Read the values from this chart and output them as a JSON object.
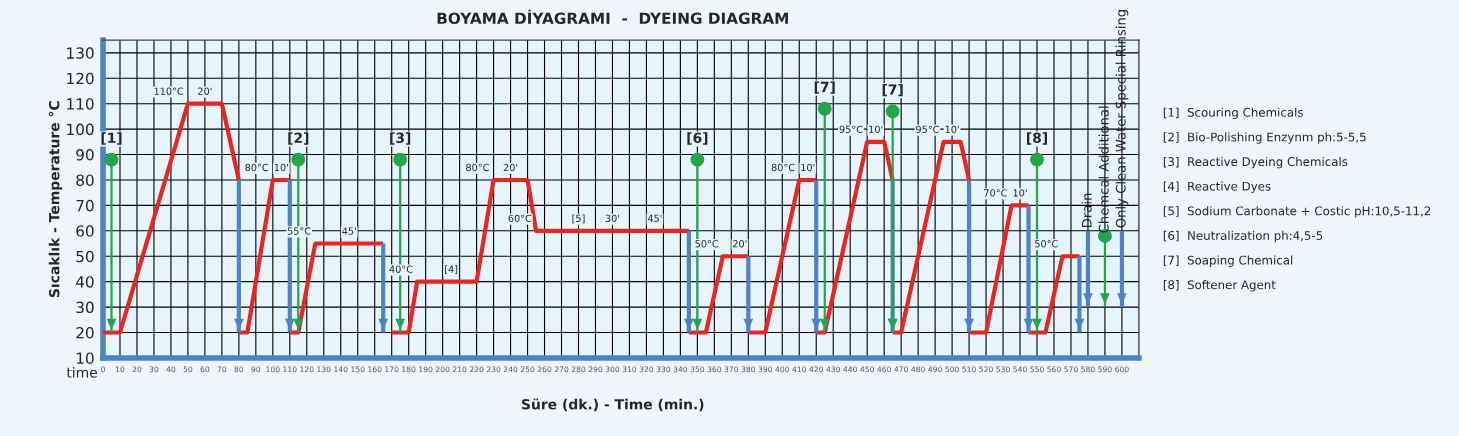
{
  "chart_data": {
    "type": "line",
    "title": "BOYAMA DİYAGRAMI  -  DYEING DIAGRAM",
    "xlabel": "Süre (dk.) - Time (min.)",
    "ylabel": "Sıcaklık - Temperature °C",
    "xlim": [
      0,
      610
    ],
    "ylim": [
      10,
      135
    ],
    "xticks": [
      0,
      10,
      20,
      30,
      40,
      50,
      60,
      70,
      80,
      90,
      100,
      110,
      120,
      130,
      140,
      150,
      160,
      170,
      180,
      190,
      200,
      210,
      220,
      230,
      240,
      250,
      260,
      270,
      280,
      290,
      300,
      310,
      320,
      330,
      340,
      350,
      360,
      370,
      380,
      390,
      400,
      410,
      420,
      430,
      440,
      450,
      460,
      470,
      480,
      490,
      500,
      510,
      520,
      530,
      540,
      550,
      560,
      570,
      580,
      590,
      600
    ],
    "yticks": [
      10,
      20,
      30,
      40,
      50,
      60,
      70,
      80,
      90,
      100,
      110,
      120,
      130
    ],
    "grid": true,
    "legend": false,
    "series": [
      {
        "color": "#e8251f",
        "marker": "none",
        "x": [
          0,
          10,
          50,
          70,
          80
        ],
        "values": [
          20,
          20,
          110,
          110,
          80
        ]
      },
      {
        "color": "#e8251f",
        "marker": "none",
        "x": [
          80,
          85,
          100,
          110
        ],
        "values": [
          20,
          20,
          80,
          80
        ]
      },
      {
        "color": "#e8251f",
        "marker": "none",
        "x": [
          110,
          115,
          125,
          165
        ],
        "values": [
          20,
          20,
          55,
          55
        ]
      },
      {
        "color": "#e8251f",
        "marker": "none",
        "x": [
          170,
          180,
          185,
          220,
          230,
          250,
          255,
          345
        ],
        "values": [
          20,
          20,
          40,
          40,
          80,
          80,
          60,
          60
        ]
      },
      {
        "color": "#e8251f",
        "marker": "none",
        "x": [
          345,
          355,
          365,
          380
        ],
        "values": [
          20,
          20,
          50,
          50
        ]
      },
      {
        "color": "#e8251f",
        "marker": "none",
        "x": [
          380,
          390,
          410,
          420
        ],
        "values": [
          20,
          20,
          80,
          80
        ]
      },
      {
        "color": "#e8251f",
        "marker": "none",
        "x": [
          420,
          425,
          450,
          460,
          465
        ],
        "values": [
          20,
          20,
          95,
          95,
          80
        ]
      },
      {
        "color": "#e8251f",
        "marker": "none",
        "x": [
          465,
          470,
          495,
          505,
          510
        ],
        "values": [
          20,
          20,
          95,
          95,
          80
        ]
      },
      {
        "color": "#e8251f",
        "marker": "none",
        "x": [
          510,
          520,
          535,
          545
        ],
        "values": [
          20,
          20,
          70,
          70
        ]
      },
      {
        "color": "#e8251f",
        "marker": "none",
        "x": [
          545,
          555,
          565,
          575
        ],
        "values": [
          20,
          20,
          50,
          50
        ]
      },
      {
        "color": "#4f81c4",
        "marker": "none",
        "x": [
          80,
          80
        ],
        "values": [
          80,
          20
        ]
      },
      {
        "color": "#4f81c4",
        "marker": "none",
        "x": [
          110,
          110
        ],
        "values": [
          80,
          20
        ]
      },
      {
        "color": "#4f81c4",
        "marker": "none",
        "x": [
          165,
          165
        ],
        "values": [
          55,
          20
        ]
      },
      {
        "color": "#4f81c4",
        "marker": "none",
        "x": [
          345,
          345
        ],
        "values": [
          60,
          20
        ]
      },
      {
        "color": "#4f81c4",
        "marker": "none",
        "x": [
          380,
          380
        ],
        "values": [
          50,
          20
        ]
      },
      {
        "color": "#4f81c4",
        "marker": "none",
        "x": [
          420,
          420
        ],
        "values": [
          80,
          20
        ]
      },
      {
        "color": "#4f81c4",
        "marker": "none",
        "x": [
          465,
          465
        ],
        "values": [
          80,
          20
        ]
      },
      {
        "color": "#4f81c4",
        "marker": "none",
        "x": [
          510,
          510
        ],
        "values": [
          80,
          20
        ]
      },
      {
        "color": "#4f81c4",
        "marker": "none",
        "x": [
          545,
          545
        ],
        "values": [
          70,
          20
        ]
      },
      {
        "color": "#4f81c4",
        "marker": "none",
        "x": [
          575,
          575
        ],
        "values": [
          50,
          20
        ]
      },
      {
        "name": "Drain",
        "color": "#4f81c4",
        "marker": "none",
        "x": [
          580,
          580
        ],
        "values": [
          60,
          30
        ]
      },
      {
        "name": "Only Clean Water Special Rinsing",
        "color": "#4f81c4",
        "marker": "none",
        "x": [
          600,
          600
        ],
        "values": [
          60,
          30
        ]
      },
      {
        "color": "#23a54a",
        "marker": "circle",
        "x": [
          5,
          5
        ],
        "values": [
          88,
          20
        ]
      },
      {
        "color": "#23a54a",
        "marker": "circle",
        "x": [
          115,
          115
        ],
        "values": [
          88,
          20
        ]
      },
      {
        "color": "#23a54a",
        "marker": "circle",
        "x": [
          175,
          175
        ],
        "values": [
          88,
          20
        ]
      },
      {
        "color": "#23a54a",
        "marker": "circle",
        "x": [
          350,
          350
        ],
        "values": [
          88,
          20
        ]
      },
      {
        "color": "#23a54a",
        "marker": "circle",
        "x": [
          425,
          425
        ],
        "values": [
          108,
          20
        ]
      },
      {
        "color": "#23a54a",
        "marker": "circle",
        "x": [
          465,
          465
        ],
        "values": [
          107,
          20
        ]
      },
      {
        "color": "#23a54a",
        "marker": "circle",
        "x": [
          550,
          550
        ],
        "values": [
          88,
          20
        ]
      },
      {
        "name": "Chemcal Additional",
        "color": "#23a54a",
        "marker": "circle",
        "x": [
          590,
          590
        ],
        "values": [
          58,
          30
        ]
      }
    ],
    "annotations": [
      "time",
      "[1]  Scouring Chemicals",
      "[2]  Bio-Polishing Enzynm ph:5-5,5",
      "[3]  Reactive Dyeing Chemicals",
      "[4]  Reactive Dyes",
      "[5]  Sodium Carbonate + Costic pH:10,5-11,2",
      "[6]  Neutralization ph:4,5-5",
      "[7]  Soaping Chemical",
      "[8]  Softener Agent",
      {
        "text": "[1]",
        "x": 5,
        "y": 88
      },
      {
        "text": "[2]",
        "x": 115,
        "y": 88
      },
      {
        "text": "[3]",
        "x": 175,
        "y": 88
      },
      {
        "text": "[4]",
        "x": 205,
        "y": 40
      },
      {
        "text": "[5]",
        "x": 280,
        "y": 60
      },
      {
        "text": "[6]",
        "x": 350,
        "y": 88
      },
      {
        "text": "[7]",
        "x": 425,
        "y": 108
      },
      {
        "text": "[7]",
        "x": 465,
        "y": 107
      },
      {
        "text": "[8]",
        "x": 550,
        "y": 88
      },
      {
        "text": "110°C",
        "x": 50,
        "y": 110
      },
      {
        "text": "20'",
        "x": 60,
        "y": 110
      },
      {
        "text": "80°C",
        "x": 100,
        "y": 80
      },
      {
        "text": "10'",
        "x": 105,
        "y": 80
      },
      {
        "text": "55°C",
        "x": 125,
        "y": 55
      },
      {
        "text": "45'",
        "x": 145,
        "y": 55
      },
      {
        "text": "40°C",
        "x": 185,
        "y": 40
      },
      {
        "text": "80°C",
        "x": 230,
        "y": 80
      },
      {
        "text": "20'",
        "x": 240,
        "y": 80
      },
      {
        "text": "60°C",
        "x": 255,
        "y": 60
      },
      {
        "text": "30'",
        "x": 300,
        "y": 60
      },
      {
        "text": "45'",
        "x": 325,
        "y": 60
      },
      {
        "text": "50°C",
        "x": 365,
        "y": 50
      },
      {
        "text": "20'",
        "x": 375,
        "y": 50
      },
      {
        "text": "80°C",
        "x": 410,
        "y": 80
      },
      {
        "text": "10'",
        "x": 415,
        "y": 80
      },
      {
        "text": "95°C",
        "x": 450,
        "y": 95
      },
      {
        "text": "10'",
        "x": 455,
        "y": 95
      },
      {
        "text": "95°C",
        "x": 495,
        "y": 95
      },
      {
        "text": "10'",
        "x": 500,
        "y": 95
      },
      {
        "text": "70°C",
        "x": 535,
        "y": 70
      },
      {
        "text": "10'",
        "x": 540,
        "y": 70
      },
      {
        "text": "50°C",
        "x": 565,
        "y": 50
      }
    ]
  }
}
